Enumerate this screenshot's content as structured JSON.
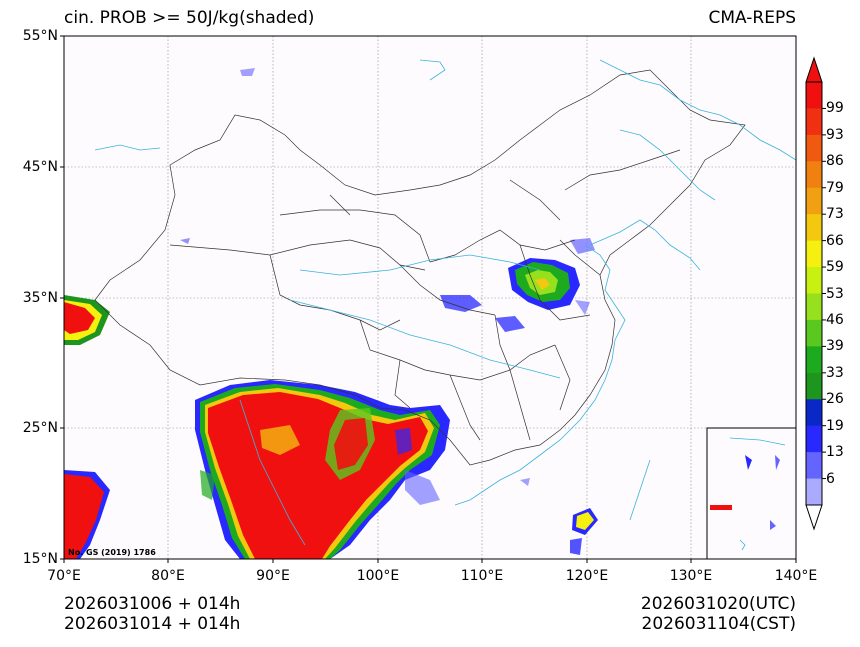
{
  "title": {
    "left": "cin. PROB >= 50J/kg(shaded)",
    "right": "CMA-REPS"
  },
  "axes": {
    "lat_ticks": [
      "55°N",
      "45°N",
      "35°N",
      "25°N",
      "15°N"
    ],
    "lon_ticks": [
      "70°E",
      "80°E",
      "90°E",
      "100°E",
      "110°E",
      "120°E",
      "130°E",
      "140°E"
    ]
  },
  "map_note": "No. GS (2019) 1786",
  "colorbar": {
    "levels": [
      "99",
      "93",
      "86",
      "79",
      "73",
      "66",
      "59",
      "53",
      "46",
      "39",
      "33",
      "26",
      "19",
      "13",
      "6"
    ],
    "colors": [
      "#f01010",
      "#f03010",
      "#f05a10",
      "#f08010",
      "#f0a010",
      "#f5c810",
      "#f5f010",
      "#c8f010",
      "#96e01e",
      "#5ac81e",
      "#1eaa1e",
      "#1e961e",
      "#0a28c8",
      "#2828ff",
      "#6464ff",
      "#aaaaff"
    ]
  },
  "footer": {
    "left_line1": "2026031006  +  014h",
    "left_line2": "2026031014  +  014h",
    "right_line1": "2026031020(UTC)",
    "right_line2": "2026031104(CST)"
  },
  "styling": {
    "coast_color": "#3ab4dc",
    "border_color": "#333333",
    "grid_color": "#888888",
    "plot_bg": "#fdfbfd"
  }
}
